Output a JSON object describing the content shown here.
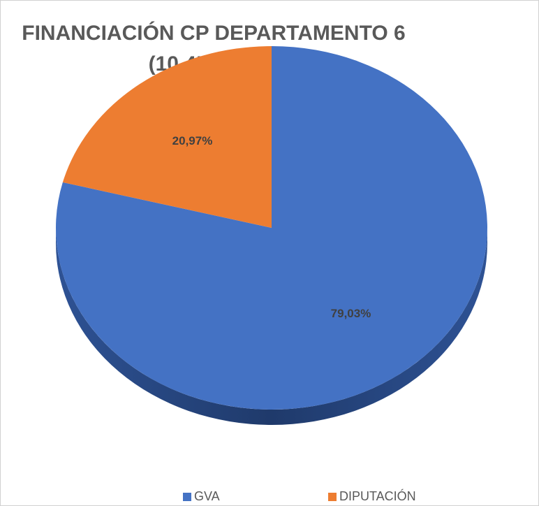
{
  "chart_data": {
    "type": "pie",
    "title": "FINANCIACIÓN CP DEPARTAMENTO 6 (10.451.462€)",
    "categories": [
      "GVA",
      "DIPUTACIÓN"
    ],
    "values": [
      79.03,
      20.97
    ],
    "value_labels": [
      "79,03%",
      "20,97%"
    ],
    "colors": [
      "#4472c4",
      "#ed7d31"
    ],
    "legend": "bottom"
  }
}
